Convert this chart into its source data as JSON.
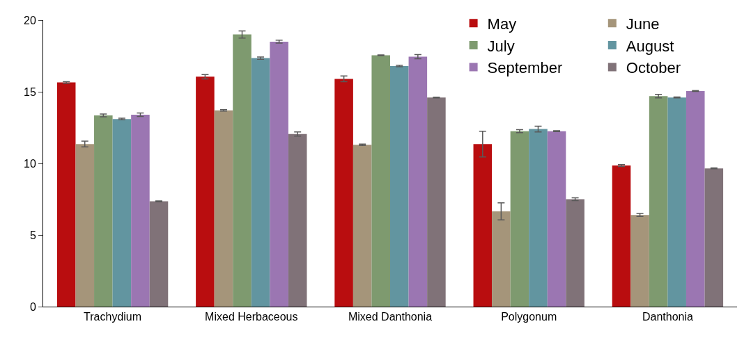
{
  "chart_data": {
    "type": "bar",
    "categories": [
      "Trachydium",
      "Mixed Herbaceous",
      "Mixed Danthonia",
      "Polygonum",
      "Danthonia"
    ],
    "series": [
      {
        "name": "May",
        "color": "#b90d0f",
        "values": [
          15.65,
          16.05,
          15.9,
          11.35,
          9.85
        ],
        "errors": [
          0.05,
          0.15,
          0.2,
          0.9,
          0.07
        ]
      },
      {
        "name": "June",
        "color": "#a5957a",
        "values": [
          11.35,
          13.7,
          11.3,
          6.65,
          6.4
        ],
        "errors": [
          0.2,
          0.05,
          0.05,
          0.6,
          0.1
        ]
      },
      {
        "name": "July",
        "color": "#7e9a6f",
        "values": [
          13.35,
          19.0,
          17.55,
          12.25,
          14.7
        ],
        "errors": [
          0.1,
          0.25,
          0.02,
          0.1,
          0.12
        ]
      },
      {
        "name": "August",
        "color": "#6295a0",
        "values": [
          13.1,
          17.35,
          16.8,
          12.4,
          14.6
        ],
        "errors": [
          0.05,
          0.08,
          0.05,
          0.2,
          0.03
        ]
      },
      {
        "name": "September",
        "color": "#9b76b2",
        "values": [
          13.4,
          18.5,
          17.45,
          12.25,
          15.05
        ],
        "errors": [
          0.12,
          0.1,
          0.15,
          0.03,
          0.03
        ]
      },
      {
        "name": "October",
        "color": "#807278",
        "values": [
          7.35,
          12.05,
          14.6,
          7.5,
          9.65
        ],
        "errors": [
          0.03,
          0.15,
          0.02,
          0.1,
          0.03
        ]
      }
    ],
    "ylim": [
      0,
      20
    ],
    "yticks": [
      0,
      5,
      10,
      15,
      20
    ],
    "grid": false,
    "legend": "top right"
  }
}
